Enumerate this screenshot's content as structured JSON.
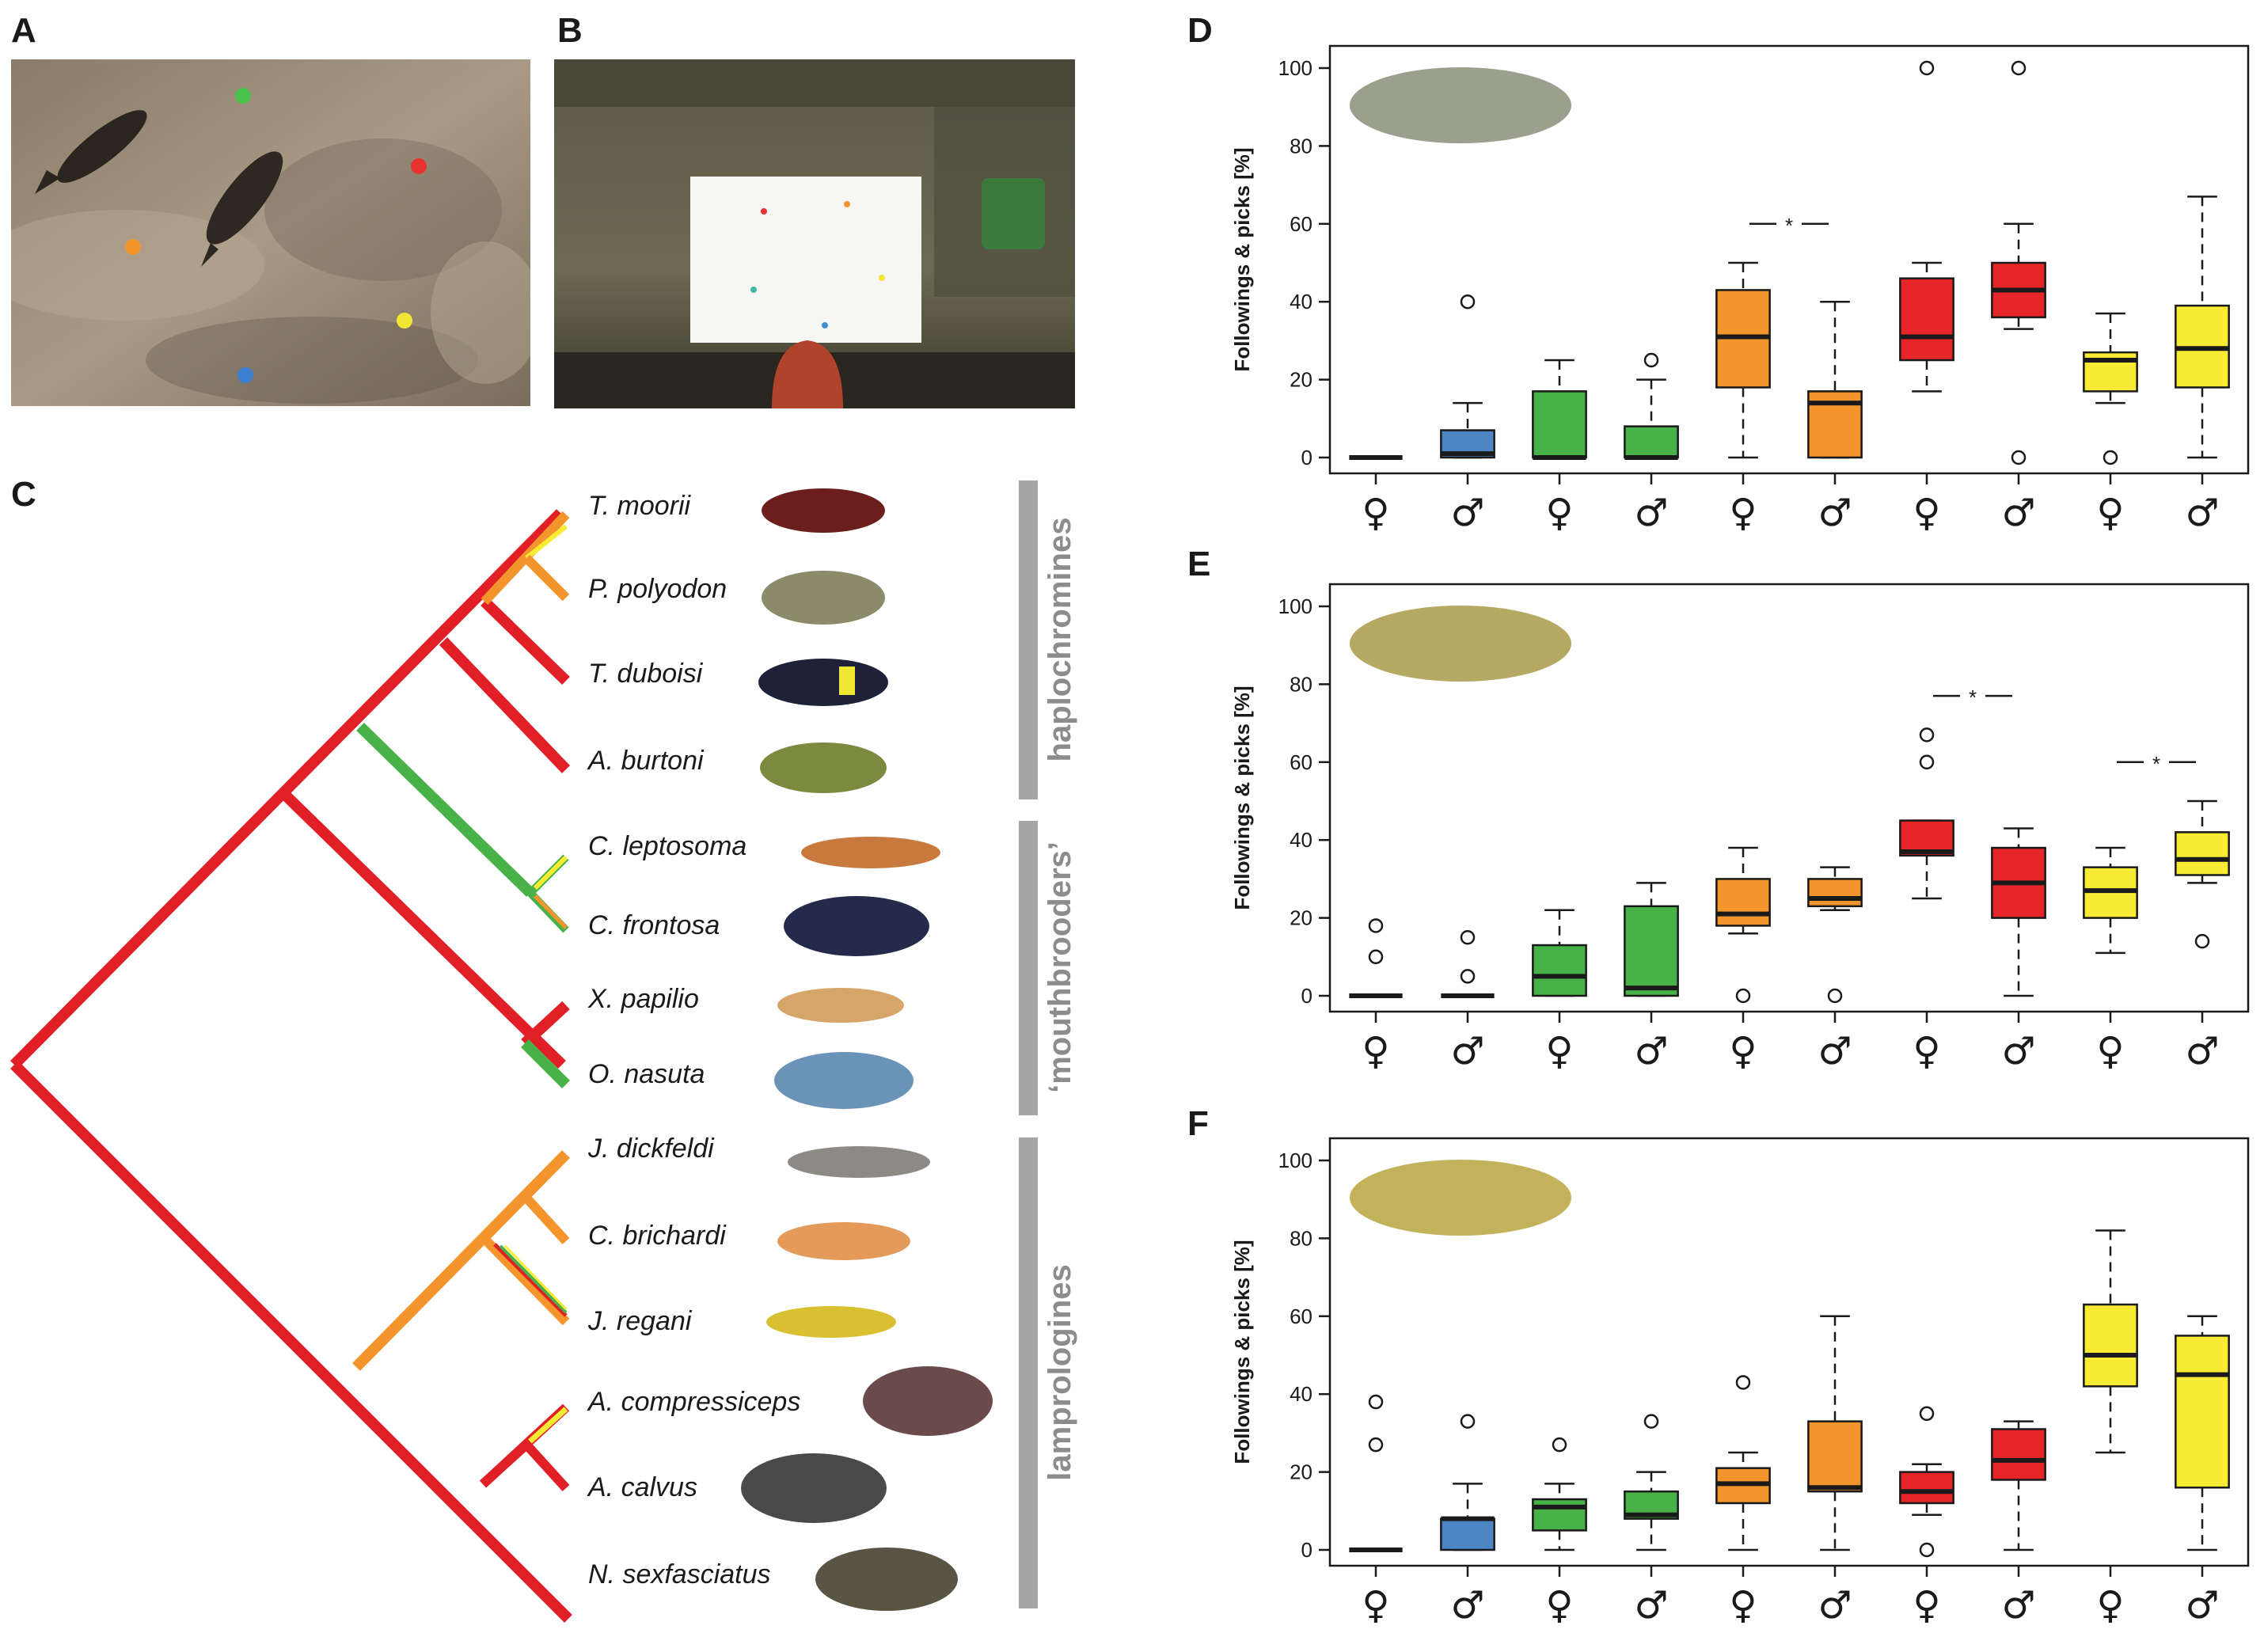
{
  "panels": {
    "a": "A",
    "b": "B",
    "c": "C",
    "d": "D",
    "e": "E",
    "f": "F"
  },
  "colors": {
    "blue": "#4d84c4",
    "green": "#48b248",
    "orange": "#f4942c",
    "red": "#e52528",
    "yellow": "#f7eb34",
    "tree_red": "#e01f26",
    "gray_bar": "#a6a6a6"
  },
  "tree": {
    "species": [
      "T. moorii",
      "P. polyodon",
      "T. duboisi",
      "A. burtoni",
      "C. leptosoma",
      "C. frontosa",
      "X. papilio",
      "O. nasuta",
      "J. dickfeldi",
      "C. brichardi",
      "J. regani",
      "A. compressiceps",
      "A. calvus",
      "N. sexfasciatus"
    ],
    "groups": [
      "haplochromines",
      "‘mouthbrooders’",
      "lamprologines"
    ]
  },
  "chart_data": [
    {
      "panel": "D",
      "type": "box",
      "ylabel": "Followings & picks [%]",
      "ylim": [
        0,
        100
      ],
      "yticks": [
        0,
        20,
        40,
        60,
        80,
        100
      ],
      "categories": [
        "♀",
        "♂",
        "♀",
        "♂",
        "♀",
        "♂",
        "♀",
        "♂",
        "♀",
        "♂"
      ],
      "significance_label": "*",
      "significance": [
        [
          5,
          6
        ]
      ],
      "boxes": [
        {
          "sex": "female",
          "color": "blue",
          "min": 0,
          "q1": 0,
          "median": 0,
          "q3": 0,
          "max": 0,
          "outliers": []
        },
        {
          "sex": "male",
          "color": "blue",
          "min": 0,
          "q1": 0,
          "median": 1,
          "q3": 7,
          "max": 14,
          "outliers": [
            40
          ]
        },
        {
          "sex": "female",
          "color": "green",
          "min": 0,
          "q1": 0,
          "median": 0,
          "q3": 17,
          "max": 25,
          "outliers": []
        },
        {
          "sex": "male",
          "color": "green",
          "min": 0,
          "q1": 0,
          "median": 0,
          "q3": 8,
          "max": 20,
          "outliers": [
            25
          ]
        },
        {
          "sex": "female",
          "color": "orange",
          "min": 0,
          "q1": 18,
          "median": 31,
          "q3": 43,
          "max": 50,
          "outliers": []
        },
        {
          "sex": "male",
          "color": "orange",
          "min": 0,
          "q1": 0,
          "median": 14,
          "q3": 17,
          "max": 40,
          "outliers": []
        },
        {
          "sex": "female",
          "color": "red",
          "min": 17,
          "q1": 25,
          "median": 31,
          "q3": 46,
          "max": 50,
          "outliers": [
            100
          ]
        },
        {
          "sex": "male",
          "color": "red",
          "min": 33,
          "q1": 36,
          "median": 43,
          "q3": 50,
          "max": 60,
          "outliers": [
            0,
            100
          ]
        },
        {
          "sex": "female",
          "color": "yellow",
          "min": 14,
          "q1": 17,
          "median": 25,
          "q3": 27,
          "max": 37,
          "outliers": [
            0
          ]
        },
        {
          "sex": "male",
          "color": "yellow",
          "min": 0,
          "q1": 18,
          "median": 28,
          "q3": 39,
          "max": 67,
          "outliers": []
        }
      ]
    },
    {
      "panel": "E",
      "type": "box",
      "ylabel": "Followings & picks [%]",
      "ylim": [
        0,
        100
      ],
      "yticks": [
        0,
        20,
        40,
        60,
        80,
        100
      ],
      "categories": [
        "♀",
        "♂",
        "♀",
        "♂",
        "♀",
        "♂",
        "♀",
        "♂",
        "♀",
        "♂"
      ],
      "significance_label": "*",
      "significance": [
        [
          7,
          8
        ],
        [
          9,
          10
        ]
      ],
      "boxes": [
        {
          "sex": "female",
          "color": "blue",
          "min": 0,
          "q1": 0,
          "median": 0,
          "q3": 0,
          "max": 0,
          "outliers": [
            10,
            18
          ]
        },
        {
          "sex": "male",
          "color": "blue",
          "min": 0,
          "q1": 0,
          "median": 0,
          "q3": 0,
          "max": 0,
          "outliers": [
            5,
            15
          ]
        },
        {
          "sex": "female",
          "color": "green",
          "min": 0,
          "q1": 0,
          "median": 5,
          "q3": 13,
          "max": 22,
          "outliers": []
        },
        {
          "sex": "male",
          "color": "green",
          "min": 0,
          "q1": 0,
          "median": 2,
          "q3": 23,
          "max": 29,
          "outliers": []
        },
        {
          "sex": "female",
          "color": "orange",
          "min": 16,
          "q1": 18,
          "median": 21,
          "q3": 30,
          "max": 38,
          "outliers": [
            0
          ]
        },
        {
          "sex": "male",
          "color": "orange",
          "min": 22,
          "q1": 23,
          "median": 25,
          "q3": 30,
          "max": 33,
          "outliers": [
            0
          ]
        },
        {
          "sex": "female",
          "color": "red",
          "min": 25,
          "q1": 36,
          "median": 37,
          "q3": 45,
          "max": 45,
          "outliers": [
            60,
            67
          ]
        },
        {
          "sex": "male",
          "color": "red",
          "min": 0,
          "q1": 20,
          "median": 29,
          "q3": 38,
          "max": 43,
          "outliers": []
        },
        {
          "sex": "female",
          "color": "yellow",
          "min": 11,
          "q1": 20,
          "median": 27,
          "q3": 33,
          "max": 38,
          "outliers": []
        },
        {
          "sex": "male",
          "color": "yellow",
          "min": 29,
          "q1": 31,
          "median": 35,
          "q3": 42,
          "max": 50,
          "outliers": [
            14
          ]
        }
      ]
    },
    {
      "panel": "F",
      "type": "box",
      "ylabel": "Followings & picks [%]",
      "ylim": [
        0,
        100
      ],
      "yticks": [
        0,
        20,
        40,
        60,
        80,
        100
      ],
      "categories": [
        "♀",
        "♂",
        "♀",
        "♂",
        "♀",
        "♂",
        "♀",
        "♂",
        "♀",
        "♂"
      ],
      "significance_label": "*",
      "significance": [],
      "boxes": [
        {
          "sex": "female",
          "color": "blue",
          "min": 0,
          "q1": 0,
          "median": 0,
          "q3": 0,
          "max": 0,
          "outliers": [
            27,
            38
          ]
        },
        {
          "sex": "male",
          "color": "blue",
          "min": 0,
          "q1": 0,
          "median": 8,
          "q3": 8,
          "max": 17,
          "outliers": [
            33
          ]
        },
        {
          "sex": "female",
          "color": "green",
          "min": 0,
          "q1": 5,
          "median": 11,
          "q3": 13,
          "max": 17,
          "outliers": [
            27
          ]
        },
        {
          "sex": "male",
          "color": "green",
          "min": 0,
          "q1": 8,
          "median": 9,
          "q3": 15,
          "max": 20,
          "outliers": [
            33
          ]
        },
        {
          "sex": "female",
          "color": "orange",
          "min": 0,
          "q1": 12,
          "median": 17,
          "q3": 21,
          "max": 25,
          "outliers": [
            43
          ]
        },
        {
          "sex": "male",
          "color": "orange",
          "min": 0,
          "q1": 15,
          "median": 16,
          "q3": 33,
          "max": 60,
          "outliers": []
        },
        {
          "sex": "female",
          "color": "red",
          "min": 9,
          "q1": 12,
          "median": 15,
          "q3": 20,
          "max": 22,
          "outliers": [
            0,
            35
          ]
        },
        {
          "sex": "male",
          "color": "red",
          "min": 0,
          "q1": 18,
          "median": 23,
          "q3": 31,
          "max": 33,
          "outliers": []
        },
        {
          "sex": "female",
          "color": "yellow",
          "min": 25,
          "q1": 42,
          "median": 50,
          "q3": 63,
          "max": 82,
          "outliers": []
        },
        {
          "sex": "male",
          "color": "yellow",
          "min": 0,
          "q1": 16,
          "median": 45,
          "q3": 55,
          "max": 60,
          "outliers": []
        }
      ]
    }
  ]
}
